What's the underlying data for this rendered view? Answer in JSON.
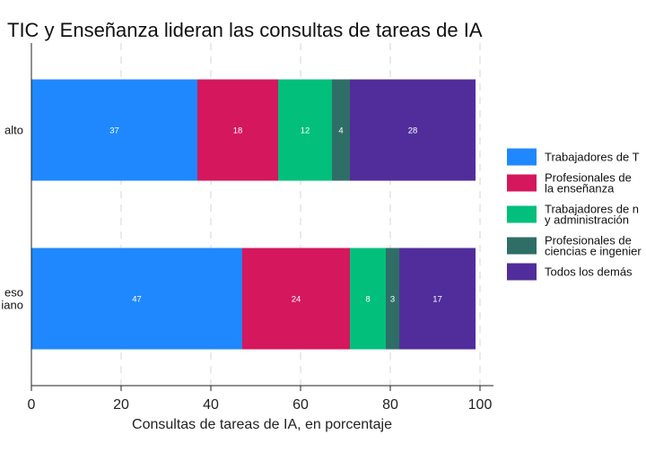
{
  "chart_data": {
    "type": "bar",
    "orientation": "horizontal",
    "stacked": true,
    "title": "TIC y Enseñanza lideran las consultas de tareas de IA",
    "xlabel": "Consultas de tareas de IA, en porcentaje",
    "ylabel": "",
    "xlim": [
      0,
      100
    ],
    "xticks": [
      0,
      20,
      40,
      60,
      80,
      100
    ],
    "categories": [
      [
        "alto"
      ],
      [
        "eso",
        "iano"
      ]
    ],
    "series": [
      {
        "name": [
          "Trabajadores de T"
        ],
        "color": "#1f88fe",
        "values": [
          37,
          47
        ]
      },
      {
        "name": [
          "Profesionales de",
          "la enseñanza"
        ],
        "color": "#d5175d",
        "values": [
          18,
          24
        ]
      },
      {
        "name": [
          "Trabajadores de n",
          "y administración"
        ],
        "color": "#02bf7c",
        "values": [
          12,
          8
        ]
      },
      {
        "name": [
          "Profesionales de",
          "ciencias e ingenier"
        ],
        "color": "#2f6e66",
        "values": [
          4,
          3
        ]
      },
      {
        "name": [
          "Todos los demás"
        ],
        "color": "#512d9b",
        "values": [
          28,
          17
        ]
      }
    ],
    "legend_position": "right",
    "grid": "vertical dashed"
  }
}
